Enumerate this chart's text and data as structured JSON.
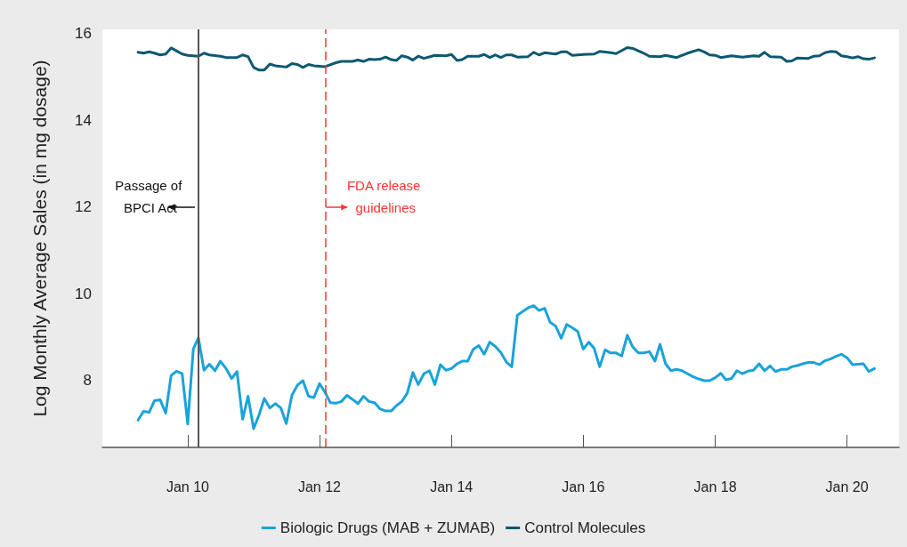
{
  "chart_data": {
    "type": "line",
    "xlabel": null,
    "ylabel": "Log Monthly Average Sales (in mg dosage)",
    "x": [
      "2009-04",
      "2009-05",
      "2009-06",
      "2009-07",
      "2009-08",
      "2009-09",
      "2009-10",
      "2009-11",
      "2009-12",
      "2010-01",
      "2010-02",
      "2010-03",
      "2010-04",
      "2010-05",
      "2010-06",
      "2010-07",
      "2010-08",
      "2010-09",
      "2010-10",
      "2010-11",
      "2010-12",
      "2011-01",
      "2011-02",
      "2011-03",
      "2011-04",
      "2011-05",
      "2011-06",
      "2011-07",
      "2011-08",
      "2011-09",
      "2011-10",
      "2011-11",
      "2011-12",
      "2012-01",
      "2012-02",
      "2012-03",
      "2012-04",
      "2012-05",
      "2012-06",
      "2012-07",
      "2012-08",
      "2012-09",
      "2012-10",
      "2012-11",
      "2012-12",
      "2013-01",
      "2013-02",
      "2013-03",
      "2013-04",
      "2013-05",
      "2013-06",
      "2013-07",
      "2013-08",
      "2013-09",
      "2013-10",
      "2013-11",
      "2013-12",
      "2014-01",
      "2014-02",
      "2014-03",
      "2014-04",
      "2014-05",
      "2014-06",
      "2014-07",
      "2014-08",
      "2014-09",
      "2014-10",
      "2014-11",
      "2014-12",
      "2015-01",
      "2015-02",
      "2015-03",
      "2015-04",
      "2015-05",
      "2015-06",
      "2015-07",
      "2015-08",
      "2015-09",
      "2015-10",
      "2015-11",
      "2015-12",
      "2016-01",
      "2016-02",
      "2016-03",
      "2016-04",
      "2016-05",
      "2016-06",
      "2016-07",
      "2016-08",
      "2016-09",
      "2016-10",
      "2016-11",
      "2016-12",
      "2017-01",
      "2017-02",
      "2017-03",
      "2017-04",
      "2017-05",
      "2017-06",
      "2017-07",
      "2017-08",
      "2017-09",
      "2017-10",
      "2017-11",
      "2017-12",
      "2018-01",
      "2018-02",
      "2018-03",
      "2018-04",
      "2018-05",
      "2018-06",
      "2018-07",
      "2018-08",
      "2018-09",
      "2018-10",
      "2018-11",
      "2018-12",
      "2019-01",
      "2019-02",
      "2019-03",
      "2019-04",
      "2019-05",
      "2019-06",
      "2019-07",
      "2019-08",
      "2019-09",
      "2019-10",
      "2019-11",
      "2019-12",
      "2020-01",
      "2020-02",
      "2020-03",
      "2020-04",
      "2020-05",
      "2020-06"
    ],
    "series": [
      {
        "name": "Biologic Drugs (MAB + ZUMAB)",
        "color": "#1aa3d9",
        "values": [
          7.08,
          7.28,
          7.26,
          7.53,
          7.55,
          7.24,
          8.11,
          8.21,
          8.15,
          6.99,
          8.72,
          8.98,
          8.23,
          8.37,
          8.22,
          8.44,
          8.27,
          8.04,
          8.2,
          7.1,
          7.63,
          6.88,
          7.21,
          7.58,
          7.36,
          7.46,
          7.36,
          7.0,
          7.65,
          7.89,
          7.99,
          7.63,
          7.6,
          7.92,
          7.72,
          7.48,
          7.47,
          7.51,
          7.65,
          7.56,
          7.46,
          7.63,
          7.51,
          7.48,
          7.34,
          7.29,
          7.29,
          7.41,
          7.51,
          7.7,
          8.18,
          7.9,
          8.15,
          8.22,
          7.9,
          8.36,
          8.23,
          8.27,
          8.38,
          8.44,
          8.44,
          8.71,
          8.8,
          8.6,
          8.88,
          8.78,
          8.64,
          8.42,
          8.31,
          9.5,
          9.59,
          9.67,
          9.72,
          9.61,
          9.66,
          9.34,
          9.25,
          8.97,
          9.29,
          9.21,
          9.13,
          8.72,
          8.88,
          8.74,
          8.31,
          8.7,
          8.63,
          8.63,
          8.56,
          9.04,
          8.77,
          8.63,
          8.63,
          8.66,
          8.44,
          8.83,
          8.38,
          8.22,
          8.25,
          8.22,
          8.15,
          8.08,
          8.03,
          7.99,
          7.99,
          8.06,
          8.16,
          8.01,
          8.04,
          8.22,
          8.15,
          8.21,
          8.23,
          8.38,
          8.22,
          8.33,
          8.2,
          8.25,
          8.25,
          8.31,
          8.34,
          8.38,
          8.41,
          8.41,
          8.36,
          8.45,
          8.49,
          8.55,
          8.6,
          8.52,
          8.36,
          8.37,
          8.38,
          8.2,
          8.27
        ]
      },
      {
        "name": "Control Molecules",
        "color": "#0e5870",
        "x": [
          "2009-04",
          "2009-05",
          "2009-06",
          "2009-07",
          "2009-08",
          "2009-09",
          "2009-10",
          "2009-11",
          "2009-12",
          "2010-01",
          "2010-03",
          "2010-04",
          "2010-05",
          "2010-07",
          "2010-08",
          "2010-10",
          "2010-11",
          "2010-12",
          "2011-01",
          "2011-02",
          "2011-03",
          "2011-04",
          "2011-05",
          "2011-07",
          "2011-08",
          "2011-09",
          "2011-10",
          "2011-11",
          "2011-12",
          "2012-02",
          "2012-04",
          "2012-05",
          "2012-07",
          "2012-08",
          "2012-09",
          "2012-10",
          "2012-11",
          "2012-12",
          "2013-01",
          "2013-02",
          "2013-03",
          "2013-04",
          "2013-05",
          "2013-06",
          "2013-07",
          "2013-08",
          "2013-10",
          "2013-12",
          "2014-01",
          "2014-02",
          "2014-03",
          "2014-04",
          "2014-06",
          "2014-07",
          "2014-08",
          "2014-09",
          "2014-10",
          "2014-11",
          "2014-12",
          "2015-01",
          "2015-03",
          "2015-04",
          "2015-05",
          "2015-06",
          "2015-08",
          "2015-09",
          "2015-10",
          "2015-11",
          "2016-01",
          "2016-03",
          "2016-04",
          "2016-06",
          "2016-07",
          "2016-09",
          "2016-10",
          "2016-12",
          "2017-01",
          "2017-03",
          "2017-04",
          "2017-06",
          "2017-08",
          "2017-10",
          "2017-11",
          "2017-12",
          "2018-01",
          "2018-02",
          "2018-04",
          "2018-06",
          "2018-08",
          "2018-09",
          "2018-10",
          "2018-11",
          "2019-01",
          "2019-02",
          "2019-03",
          "2019-04",
          "2019-06",
          "2019-07",
          "2019-08",
          "2019-09",
          "2019-10",
          "2019-11",
          "2019-12",
          "2020-01",
          "2020-02",
          "2020-03",
          "2020-04",
          "2020-05",
          "2020-06"
        ],
        "values": [
          15.57,
          15.55,
          15.58,
          15.55,
          15.51,
          15.53,
          15.67,
          15.6,
          15.53,
          15.5,
          15.48,
          15.55,
          15.51,
          15.48,
          15.45,
          15.45,
          15.51,
          15.47,
          15.22,
          15.16,
          15.16,
          15.3,
          15.26,
          15.23,
          15.31,
          15.29,
          15.22,
          15.29,
          15.26,
          15.24,
          15.33,
          15.36,
          15.36,
          15.39,
          15.36,
          15.41,
          15.4,
          15.41,
          15.46,
          15.4,
          15.38,
          15.49,
          15.46,
          15.39,
          15.48,
          15.43,
          15.5,
          15.49,
          15.52,
          15.38,
          15.4,
          15.48,
          15.48,
          15.52,
          15.45,
          15.51,
          15.45,
          15.51,
          15.51,
          15.46,
          15.47,
          15.57,
          15.51,
          15.56,
          15.53,
          15.58,
          15.58,
          15.5,
          15.52,
          15.53,
          15.59,
          15.56,
          15.54,
          15.68,
          15.66,
          15.55,
          15.48,
          15.47,
          15.5,
          15.45,
          15.55,
          15.63,
          15.58,
          15.51,
          15.5,
          15.45,
          15.49,
          15.46,
          15.49,
          15.48,
          15.57,
          15.47,
          15.46,
          15.36,
          15.37,
          15.44,
          15.43,
          15.48,
          15.49,
          15.56,
          15.59,
          15.58,
          15.49,
          15.47,
          15.44,
          15.47,
          15.42,
          15.41,
          15.44
        ]
      }
    ],
    "xlim": [
      "2008-09-15",
      "2020-10-15"
    ],
    "xticks": [
      {
        "value": "2010-01",
        "label": "Jan 10"
      },
      {
        "value": "2012-01",
        "label": "Jan 12"
      },
      {
        "value": "2014-01",
        "label": "Jan 14"
      },
      {
        "value": "2016-01",
        "label": "Jan 16"
      },
      {
        "value": "2018-01",
        "label": "Jan 18"
      },
      {
        "value": "2020-01",
        "label": "Jan 20"
      }
    ],
    "ylim": [
      6.45,
      16.1
    ],
    "yticks": [
      8,
      10,
      12,
      14,
      16
    ],
    "ref_lines": [
      {
        "axis": "x",
        "value": "2010-03",
        "label": "Passage of BPCI Act",
        "color": "#555555",
        "line_style": "solid"
      },
      {
        "axis": "x",
        "value": "2012-02",
        "label": "FDA release guidelines",
        "color": "#ff3333",
        "line_style": "dashed"
      }
    ],
    "legend": "bottom",
    "grid": false,
    "marker": "none",
    "line_style": "solid"
  }
}
